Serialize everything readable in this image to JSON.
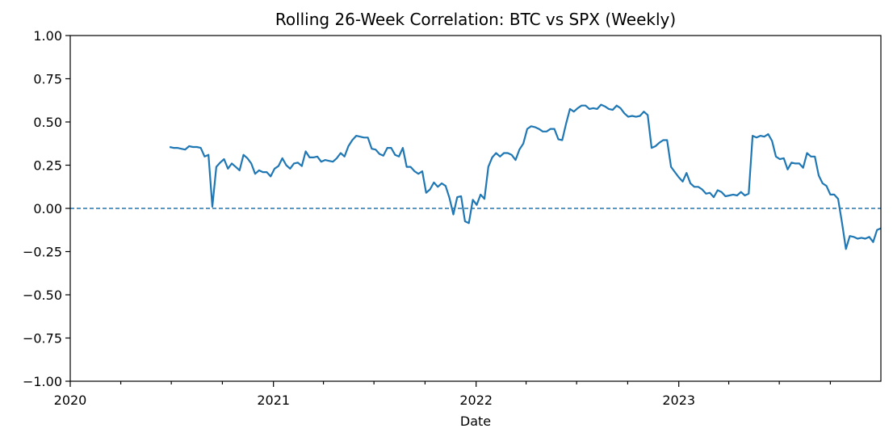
{
  "chart_data": {
    "type": "line",
    "title": "Rolling 26-Week Correlation: BTC vs SPX (Weekly)",
    "xlabel": "Date",
    "ylabel": "",
    "xlim": [
      "2020-01-01",
      "2023-12-31"
    ],
    "ylim": [
      -1.0,
      1.0
    ],
    "grid": false,
    "y_ticks": [
      "1.00",
      "0.75",
      "0.50",
      "0.25",
      "0.00",
      "−0.25",
      "−0.50",
      "−0.75",
      "−1.00"
    ],
    "x_ticks": [
      "2020",
      "2021",
      "2022",
      "2023"
    ],
    "reference_line": {
      "y": 0.0,
      "style": "dashed",
      "color": "#1f77b4"
    },
    "series_color": "#1f77b4",
    "series": [
      {
        "x": [
          "2020-06-28",
          "2020-07-05",
          "2020-07-12",
          "2020-07-19",
          "2020-07-26",
          "2020-08-02",
          "2020-08-09",
          "2020-08-16",
          "2020-08-23",
          "2020-08-30",
          "2020-09-06",
          "2020-09-13",
          "2020-09-20",
          "2020-09-27",
          "2020-10-04",
          "2020-10-11",
          "2020-10-18",
          "2020-10-25",
          "2020-11-01",
          "2020-11-08",
          "2020-11-15",
          "2020-11-22",
          "2020-11-29",
          "2020-12-06",
          "2020-12-13",
          "2020-12-20",
          "2020-12-27",
          "2021-01-03",
          "2021-01-10",
          "2021-01-17",
          "2021-01-24",
          "2021-01-31",
          "2021-02-07",
          "2021-02-14",
          "2021-02-21",
          "2021-02-28",
          "2021-03-07",
          "2021-03-14",
          "2021-03-21",
          "2021-03-28",
          "2021-04-04",
          "2021-04-11",
          "2021-04-18",
          "2021-04-25",
          "2021-05-02",
          "2021-05-09",
          "2021-05-16",
          "2021-05-23",
          "2021-05-30",
          "2021-06-06",
          "2021-06-13",
          "2021-06-20",
          "2021-06-27",
          "2021-07-04",
          "2021-07-11",
          "2021-07-18",
          "2021-07-25",
          "2021-08-01",
          "2021-08-08",
          "2021-08-15",
          "2021-08-22",
          "2021-08-29",
          "2021-09-05",
          "2021-09-12",
          "2021-09-19",
          "2021-09-26",
          "2021-10-03",
          "2021-10-10",
          "2021-10-17",
          "2021-10-24",
          "2021-10-31",
          "2021-11-07",
          "2021-11-14",
          "2021-11-21",
          "2021-11-28",
          "2021-12-05",
          "2021-12-12",
          "2021-12-19",
          "2021-12-26",
          "2022-01-02",
          "2022-01-09",
          "2022-01-16",
          "2022-01-23",
          "2022-01-30",
          "2022-02-06",
          "2022-02-13",
          "2022-02-20",
          "2022-02-27",
          "2022-03-06",
          "2022-03-13",
          "2022-03-20",
          "2022-03-27",
          "2022-04-03",
          "2022-04-10",
          "2022-04-17",
          "2022-04-24",
          "2022-05-01",
          "2022-05-08",
          "2022-05-15",
          "2022-05-22",
          "2022-05-29",
          "2022-06-05",
          "2022-06-12",
          "2022-06-19",
          "2022-06-26",
          "2022-07-03",
          "2022-07-10",
          "2022-07-17",
          "2022-07-24",
          "2022-07-31",
          "2022-08-07",
          "2022-08-14",
          "2022-08-21",
          "2022-08-28",
          "2022-09-04",
          "2022-09-11",
          "2022-09-18",
          "2022-09-25",
          "2022-10-02",
          "2022-10-09",
          "2022-10-16",
          "2022-10-23",
          "2022-10-30",
          "2022-11-06",
          "2022-11-13",
          "2022-11-20",
          "2022-11-27",
          "2022-12-04",
          "2022-12-11",
          "2022-12-18",
          "2022-12-25",
          "2023-01-01",
          "2023-01-08",
          "2023-01-15",
          "2023-01-22",
          "2023-01-29",
          "2023-02-05",
          "2023-02-12",
          "2023-02-19",
          "2023-02-26",
          "2023-03-05",
          "2023-03-12",
          "2023-03-19",
          "2023-03-26",
          "2023-04-02",
          "2023-04-09",
          "2023-04-16",
          "2023-04-23",
          "2023-04-30",
          "2023-05-07",
          "2023-05-14",
          "2023-05-21",
          "2023-05-28",
          "2023-06-04",
          "2023-06-11",
          "2023-06-18",
          "2023-06-25",
          "2023-07-02",
          "2023-07-09",
          "2023-07-16",
          "2023-07-23",
          "2023-07-30",
          "2023-08-06",
          "2023-08-13",
          "2023-08-20",
          "2023-08-27",
          "2023-09-03",
          "2023-09-10",
          "2023-09-17",
          "2023-09-24",
          "2023-10-01",
          "2023-10-08",
          "2023-10-15",
          "2023-10-22",
          "2023-10-29",
          "2023-11-05",
          "2023-11-12",
          "2023-11-19",
          "2023-11-26",
          "2023-12-03",
          "2023-12-10",
          "2023-12-17",
          "2023-12-24",
          "2023-12-31"
        ],
        "values": [
          0.355,
          0.35,
          0.35,
          0.345,
          0.34,
          0.36,
          0.355,
          0.355,
          0.35,
          0.3,
          0.31,
          0.01,
          0.24,
          0.265,
          0.285,
          0.23,
          0.26,
          0.24,
          0.22,
          0.31,
          0.29,
          0.26,
          0.2,
          0.22,
          0.21,
          0.21,
          0.185,
          0.23,
          0.245,
          0.29,
          0.25,
          0.23,
          0.26,
          0.265,
          0.245,
          0.33,
          0.295,
          0.295,
          0.3,
          0.27,
          0.28,
          0.275,
          0.27,
          0.29,
          0.32,
          0.3,
          0.36,
          0.395,
          0.42,
          0.415,
          0.41,
          0.41,
          0.345,
          0.34,
          0.315,
          0.305,
          0.35,
          0.35,
          0.31,
          0.3,
          0.35,
          0.24,
          0.24,
          0.215,
          0.2,
          0.215,
          0.09,
          0.11,
          0.15,
          0.125,
          0.145,
          0.13,
          0.06,
          -0.035,
          0.065,
          0.07,
          -0.075,
          -0.085,
          0.05,
          0.02,
          0.08,
          0.055,
          0.24,
          0.295,
          0.32,
          0.3,
          0.32,
          0.32,
          0.31,
          0.28,
          0.34,
          0.375,
          0.46,
          0.475,
          0.47,
          0.46,
          0.445,
          0.445,
          0.46,
          0.46,
          0.4,
          0.395,
          0.49,
          0.575,
          0.56,
          0.58,
          0.595,
          0.595,
          0.575,
          0.58,
          0.575,
          0.6,
          0.59,
          0.575,
          0.57,
          0.595,
          0.58,
          0.55,
          0.53,
          0.535,
          0.53,
          0.535,
          0.56,
          0.54,
          0.35,
          0.36,
          0.38,
          0.395,
          0.395,
          0.24,
          0.21,
          0.18,
          0.155,
          0.205,
          0.145,
          0.125,
          0.125,
          0.11,
          0.085,
          0.09,
          0.065,
          0.105,
          0.095,
          0.07,
          0.075,
          0.08,
          0.075,
          0.095,
          0.075,
          0.085,
          0.42,
          0.41,
          0.42,
          0.415,
          0.43,
          0.39,
          0.3,
          0.285,
          0.29,
          0.225,
          0.265,
          0.26,
          0.26,
          0.235,
          0.32,
          0.3,
          0.3,
          0.19,
          0.145,
          0.13,
          0.08,
          0.08,
          0.055,
          -0.085,
          -0.235,
          -0.16,
          -0.165,
          -0.175,
          -0.17,
          -0.175,
          -0.165,
          -0.195,
          -0.125,
          -0.115
        ]
      }
    ]
  }
}
